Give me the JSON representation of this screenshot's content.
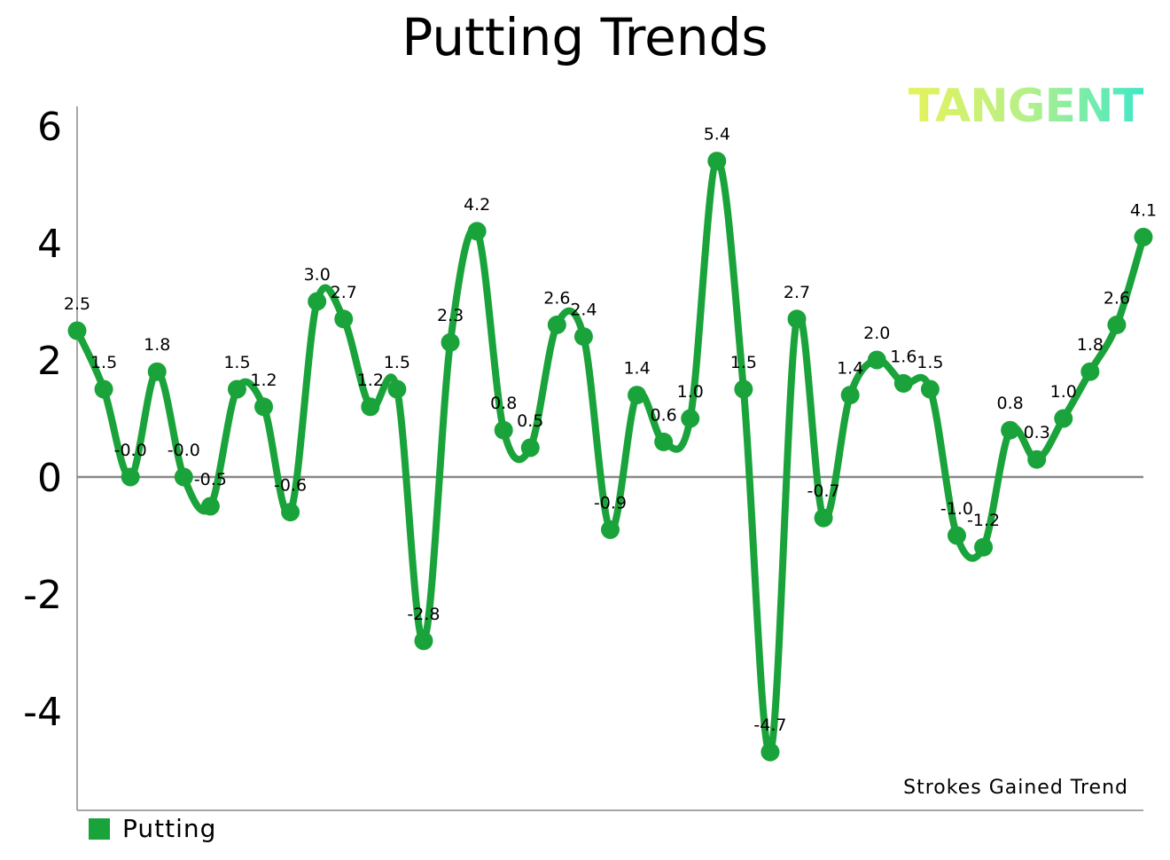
{
  "chart_data": {
    "type": "line",
    "title": "Putting Trends",
    "brand": "TANGENT",
    "annotation": "Strokes Gained Trend",
    "ylim": [
      -5.7,
      6.3
    ],
    "yticks": [
      6,
      4,
      2,
      0,
      -2,
      -4
    ],
    "yticklabels": [
      "6",
      "4",
      "2",
      "0",
      "-2",
      "-4"
    ],
    "grid": false,
    "legend_position": "bottom-left",
    "series": [
      {
        "name": "Putting",
        "color": "#1aa33a",
        "values": [
          2.5,
          1.5,
          -0.0,
          1.8,
          -0.0,
          -0.5,
          1.5,
          1.2,
          -0.6,
          3.0,
          2.7,
          1.2,
          1.5,
          -2.8,
          2.3,
          4.2,
          0.8,
          0.5,
          2.6,
          2.4,
          -0.9,
          1.4,
          0.6,
          1.0,
          5.4,
          1.5,
          -4.7,
          2.7,
          -0.7,
          1.4,
          2.0,
          1.6,
          1.5,
          -1.0,
          -1.2,
          0.8,
          0.3,
          1.0,
          1.8,
          2.6,
          4.1
        ],
        "labels": [
          "2.5",
          "1.5",
          "-0.0",
          "1.8",
          "-0.0",
          "-0.5",
          "1.5",
          "1.2",
          "-0.6",
          "3.0",
          "2.7",
          "1.2",
          "1.5",
          "-2.8",
          "2.3",
          "4.2",
          "0.8",
          "0.5",
          "2.6",
          "2.4",
          "-0.9",
          "1.4",
          "0.6",
          "1.0",
          "5.4",
          "1.5",
          "-4.7",
          "2.7",
          "-0.7",
          "1.4",
          "2.0",
          "1.6",
          "1.5",
          "-1.0",
          "-1.2",
          "0.8",
          "0.3",
          "1.0",
          "1.8",
          "2.6",
          "4.1"
        ]
      }
    ]
  }
}
